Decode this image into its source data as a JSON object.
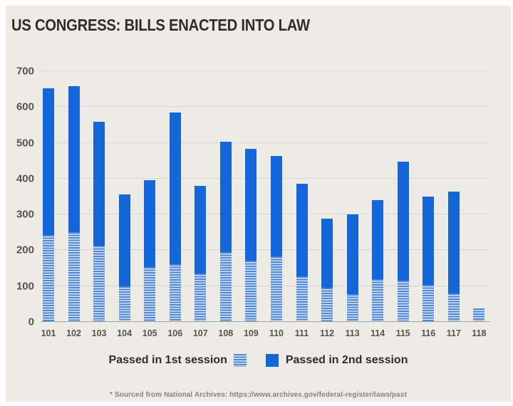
{
  "page": {
    "title": "US CONGRESS: BILLS ENACTED INTO LAW",
    "footnote": "* Sourced from National Archives: https://www.archives.gov/federal-register/laws/past"
  },
  "legend": {
    "first_session_label": "Passed in 1st session",
    "second_session_label": "Passed in 2nd session"
  },
  "colors": {
    "page_background": "#fdfcfa",
    "card_background": "#ecebe5",
    "title_text": "#2e2d29",
    "axis_label": "#56544e",
    "gridline": "#d8d6d0",
    "baseline": "#a3a19b",
    "bar_solid_blue": "#1467d9",
    "bar_hatch_blue": "#4c86d4",
    "bar_hatch_light": "#d9e3f2",
    "footnote_text": "#85837d"
  },
  "chart_data": {
    "type": "bar",
    "stacked": true,
    "title": "US CONGRESS: BILLS ENACTED INTO LAW",
    "xlabel": "",
    "ylabel": "",
    "categories": [
      "101",
      "102",
      "103",
      "104",
      "105",
      "106",
      "107",
      "108",
      "109",
      "110",
      "111",
      "112",
      "113",
      "114",
      "115",
      "116",
      "117",
      "118"
    ],
    "series": [
      {
        "name": "Passed in 1st session",
        "style": "hatched-light-blue",
        "values": [
          240,
          248,
          210,
          98,
          152,
          160,
          133,
          193,
          170,
          180,
          125,
          93,
          75,
          117,
          114,
          102,
          77,
          36
        ]
      },
      {
        "name": "Passed in 2nd session",
        "style": "solid-blue",
        "values": [
          410,
          408,
          347,
          257,
          243,
          424,
          245,
          309,
          313,
          280,
          258,
          192,
          223,
          221,
          333,
          246,
          285,
          0
        ]
      }
    ],
    "totals": [
      650,
      656,
      557,
      355,
      395,
      584,
      378,
      502,
      483,
      460,
      383,
      285,
      298,
      338,
      447,
      348,
      362,
      36
    ],
    "ylim": [
      0,
      700
    ],
    "yticks": [
      0,
      100,
      200,
      300,
      400,
      500,
      600,
      700
    ],
    "grid": true,
    "legend_position": "bottom"
  }
}
